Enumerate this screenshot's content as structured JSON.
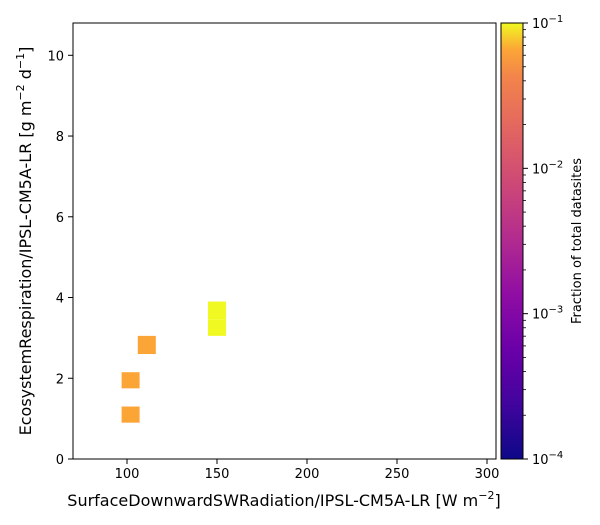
{
  "chart_data": {
    "type": "heatmap",
    "title": "",
    "xlabel": {
      "main": "SurfaceDownwardSWRadiation/IPSL-CM5A-LR [W m",
      "sup": "−2",
      "end": "]"
    },
    "ylabel": {
      "main": "EcosystemRespiration/IPSL-CM5A-LR [g m",
      "sup1": "−2",
      "mid": " d",
      "sup2": "−1",
      "end": "]"
    },
    "xlim": [
      70,
      305
    ],
    "ylim": [
      0,
      10.8
    ],
    "x_ticks": [
      100,
      150,
      200,
      250,
      300
    ],
    "x_tick_labels": [
      "100",
      "150",
      "200",
      "250",
      "300"
    ],
    "y_ticks": [
      0,
      2,
      4,
      6,
      8,
      10
    ],
    "y_tick_labels": [
      "0",
      "2",
      "4",
      "6",
      "8",
      "10"
    ],
    "grid": false,
    "cells": [
      {
        "x0": 97,
        "x1": 107,
        "y0": 0.9,
        "y1": 1.3,
        "value": 0.065
      },
      {
        "x0": 97,
        "x1": 107,
        "y0": 1.75,
        "y1": 2.15,
        "value": 0.065
      },
      {
        "x0": 106,
        "x1": 116,
        "y0": 2.6,
        "y1": 3.05,
        "value": 0.065
      },
      {
        "x0": 145,
        "x1": 155,
        "y0": 3.05,
        "y1": 3.45,
        "value": 0.1
      },
      {
        "x0": 145,
        "x1": 155,
        "y0": 3.45,
        "y1": 3.9,
        "value": 0.1
      }
    ],
    "colorbar": {
      "label": "Fraction of total datasites",
      "scale": "log",
      "range": [
        0.0001,
        0.1
      ],
      "colormap": "plasma",
      "ticks": [
        {
          "value": 0.0001,
          "base": "10",
          "exp": "−4"
        },
        {
          "value": 0.001,
          "base": "10",
          "exp": "−3"
        },
        {
          "value": 0.01,
          "base": "10",
          "exp": "−2"
        },
        {
          "value": 0.1,
          "base": "10",
          "exp": "−1"
        }
      ]
    }
  }
}
